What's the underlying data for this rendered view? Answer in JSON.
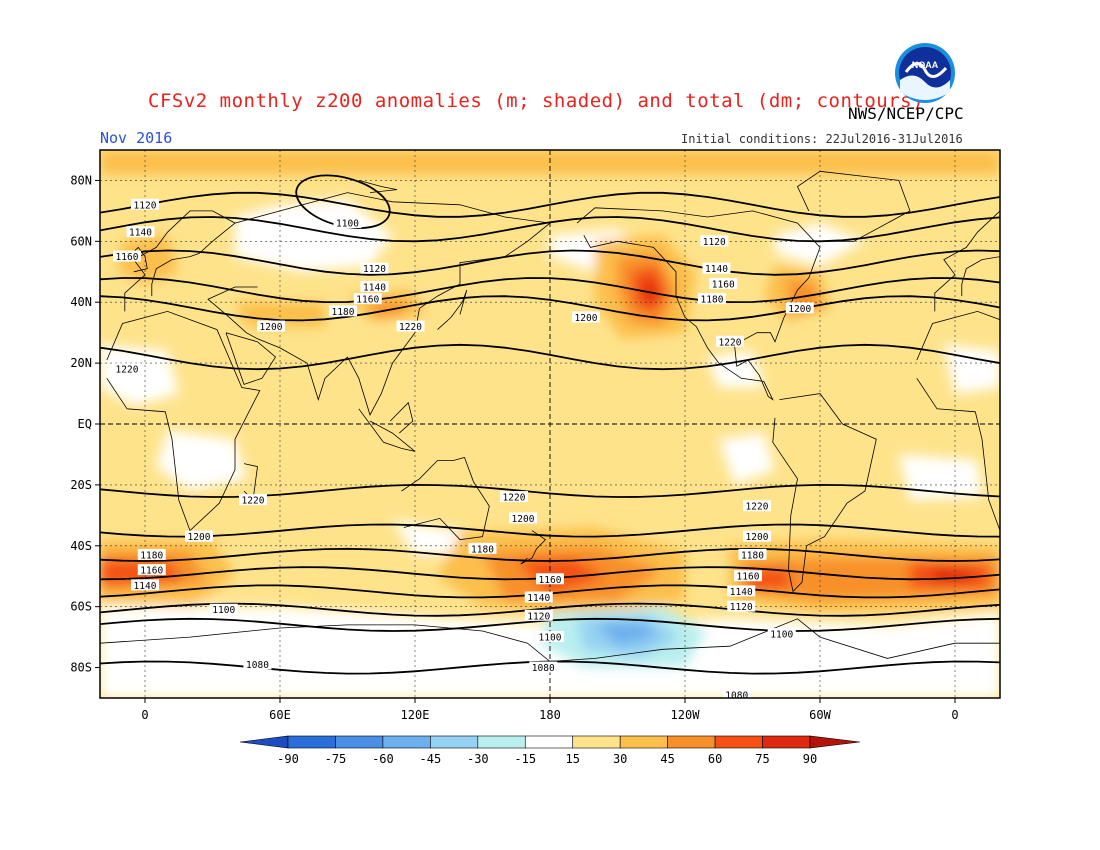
{
  "header": {
    "title": "CFSv2 monthly z200 anomalies (m; shaded) and total (dm; contours)",
    "agency": "NWS/NCEP/CPC",
    "valid_month": "Nov 2016",
    "initial_conditions": "Initial conditions: 22Jul2016-31Jul2016",
    "logo": {
      "icon": "noaa-logo-icon",
      "text": "NOAA"
    }
  },
  "colors": {
    "c15_30": "#fee38b",
    "c30_45": "#fcbf4b",
    "c45_60": "#f8902a",
    "c60_75": "#f45116",
    "c75_90": "#de2a10",
    "c90p": "#b41408",
    "cm15_30": "#b9efef",
    "cm30_45": "#95d1f2",
    "cm45_60": "#6eb0ef",
    "cm60_75": "#4a8ee6",
    "cm75_90": "#2a6ed9",
    "cm90": "#1c4cc0",
    "neutral": "#ffffff",
    "contour": "#000000",
    "land": "#000000"
  },
  "axes": {
    "y_ticks": [
      "80N",
      "60N",
      "40N",
      "20N",
      "EQ",
      "20S",
      "40S",
      "60S",
      "80S"
    ],
    "x_ticks": [
      "0",
      "60E",
      "120E",
      "180",
      "120W",
      "60W",
      "0"
    ]
  },
  "contours": [
    {
      "label": "1120",
      "lat": 72
    },
    {
      "label": "1140",
      "lat": 64
    },
    {
      "label": "1160",
      "lat": 53
    },
    {
      "label": "1180",
      "lat": 44
    },
    {
      "label": "1200",
      "lat": 38
    },
    {
      "label": "1220",
      "lat": 22
    },
    {
      "label": "1220",
      "lat": -22
    },
    {
      "label": "1200",
      "lat": -35
    },
    {
      "label": "1180",
      "lat": -43
    },
    {
      "label": "1160",
      "lat": -49
    },
    {
      "label": "1140",
      "lat": -55
    },
    {
      "label": "1120",
      "lat": -61
    },
    {
      "label": "1100",
      "lat": -66
    },
    {
      "label": "1080",
      "lat": -80
    }
  ],
  "contour_labels": [
    {
      "text": "1120",
      "lon": 0,
      "lat": 72
    },
    {
      "text": "1140",
      "lon": -2,
      "lat": 63
    },
    {
      "text": "1160",
      "lon": -8,
      "lat": 55
    },
    {
      "text": "1100",
      "lon": 90,
      "lat": 66
    },
    {
      "text": "1120",
      "lon": 102,
      "lat": 51
    },
    {
      "text": "1140",
      "lon": 102,
      "lat": 45
    },
    {
      "text": "1160",
      "lon": 99,
      "lat": 41
    },
    {
      "text": "1180",
      "lon": 88,
      "lat": 37
    },
    {
      "text": "1200",
      "lon": 56,
      "lat": 32
    },
    {
      "text": "1220",
      "lon": 118,
      "lat": 32
    },
    {
      "text": "1200",
      "lon": 196,
      "lat": 35
    },
    {
      "text": "1120",
      "lon": 253,
      "lat": 60
    },
    {
      "text": "1140",
      "lon": 254,
      "lat": 51
    },
    {
      "text": "1160",
      "lon": 257,
      "lat": 46
    },
    {
      "text": "1180",
      "lon": 252,
      "lat": 41
    },
    {
      "text": "1200",
      "lon": 291,
      "lat": 38
    },
    {
      "text": "1220",
      "lon": 260,
      "lat": 27
    },
    {
      "text": "1220",
      "lon": -8,
      "lat": 18
    },
    {
      "text": "1220",
      "lon": 48,
      "lat": -25
    },
    {
      "text": "1220",
      "lon": 164,
      "lat": -24
    },
    {
      "text": "1220",
      "lon": 272,
      "lat": -27
    },
    {
      "text": "1200",
      "lon": 168,
      "lat": -31
    },
    {
      "text": "1200",
      "lon": 24,
      "lat": -37
    },
    {
      "text": "1200",
      "lon": 272,
      "lat": -37
    },
    {
      "text": "1180",
      "lon": 150,
      "lat": -41
    },
    {
      "text": "1180",
      "lon": 270,
      "lat": -43
    },
    {
      "text": "1180",
      "lon": 3,
      "lat": -43
    },
    {
      "text": "1160",
      "lon": 3,
      "lat": -48
    },
    {
      "text": "1160",
      "lon": 180,
      "lat": -51
    },
    {
      "text": "1160",
      "lon": 268,
      "lat": -50
    },
    {
      "text": "1140",
      "lon": 0,
      "lat": -53
    },
    {
      "text": "1140",
      "lon": 175,
      "lat": -57
    },
    {
      "text": "1140",
      "lon": 265,
      "lat": -55
    },
    {
      "text": "1120",
      "lon": 175,
      "lat": -63
    },
    {
      "text": "1120",
      "lon": 265,
      "lat": -60
    },
    {
      "text": "1100",
      "lon": 35,
      "lat": -61
    },
    {
      "text": "1100",
      "lon": 180,
      "lat": -70
    },
    {
      "text": "1100",
      "lon": 283,
      "lat": -69
    },
    {
      "text": "1080",
      "lon": 50,
      "lat": -79
    },
    {
      "text": "1080",
      "lon": 177,
      "lat": -80
    },
    {
      "text": "1080",
      "lon": 263,
      "lat": -89
    }
  ],
  "colorbar": {
    "labels": [
      "-90",
      "-75",
      "-60",
      "-45",
      "-30",
      "-15",
      "15",
      "30",
      "45",
      "60",
      "75",
      "90"
    ]
  }
}
